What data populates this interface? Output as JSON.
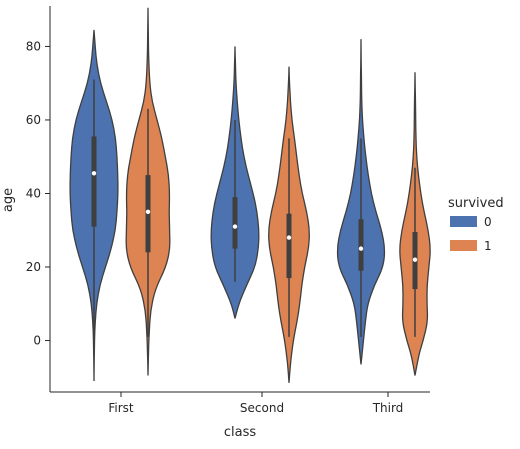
{
  "chart_data": {
    "type": "violin",
    "xlabel": "class",
    "ylabel": "age",
    "categories": [
      "First",
      "Second",
      "Third"
    ],
    "ylim": [
      -14,
      91
    ],
    "yticks": [
      0,
      20,
      40,
      60,
      80
    ],
    "legend": {
      "title": "survived",
      "position": "right",
      "entries": [
        {
          "label": "0",
          "color": "#4c72b0"
        },
        {
          "label": "1",
          "color": "#dd8452"
        }
      ]
    },
    "grid": false,
    "series": [
      {
        "name": "0",
        "color": "#4c72b0",
        "violins": [
          {
            "category": "First",
            "min": -11,
            "max": 84.5,
            "q1": 31,
            "median": 45.5,
            "q3": 55.5,
            "whisker_low": 1,
            "whisker_high": 71,
            "profile": [
              [
                -11,
                0.0
              ],
              [
                -5,
                0.01
              ],
              [
                0,
                0.02
              ],
              [
                5,
                0.05
              ],
              [
                10,
                0.11
              ],
              [
                15,
                0.24
              ],
              [
                20,
                0.48
              ],
              [
                25,
                0.72
              ],
              [
                30,
                0.89
              ],
              [
                35,
                0.96
              ],
              [
                40,
                1.0
              ],
              [
                45,
                0.99
              ],
              [
                50,
                0.96
              ],
              [
                55,
                0.9
              ],
              [
                60,
                0.76
              ],
              [
                65,
                0.52
              ],
              [
                70,
                0.27
              ],
              [
                75,
                0.12
              ],
              [
                80,
                0.05
              ],
              [
                84.5,
                0.0
              ]
            ]
          },
          {
            "category": "Second",
            "min": 6,
            "max": 80,
            "q1": 25,
            "median": 31,
            "q3": 39,
            "whisker_low": 16,
            "whisker_high": 60,
            "profile": [
              [
                6,
                0.0
              ],
              [
                10,
                0.15
              ],
              [
                15,
                0.48
              ],
              [
                20,
                0.84
              ],
              [
                25,
                0.98
              ],
              [
                30,
                1.0
              ],
              [
                35,
                0.92
              ],
              [
                40,
                0.76
              ],
              [
                45,
                0.55
              ],
              [
                50,
                0.37
              ],
              [
                55,
                0.25
              ],
              [
                60,
                0.16
              ],
              [
                65,
                0.09
              ],
              [
                70,
                0.04
              ],
              [
                75,
                0.02
              ],
              [
                80,
                0.0
              ]
            ]
          },
          {
            "category": "Third",
            "min": -6.5,
            "max": 82,
            "q1": 19,
            "median": 25,
            "q3": 33,
            "whisker_low": 1,
            "whisker_high": 55,
            "profile": [
              [
                -6.5,
                0.0
              ],
              [
                0,
                0.1
              ],
              [
                5,
                0.18
              ],
              [
                10,
                0.28
              ],
              [
                15,
                0.55
              ],
              [
                20,
                0.93
              ],
              [
                25,
                1.0
              ],
              [
                30,
                0.86
              ],
              [
                35,
                0.62
              ],
              [
                40,
                0.43
              ],
              [
                45,
                0.3
              ],
              [
                50,
                0.2
              ],
              [
                55,
                0.12
              ],
              [
                60,
                0.06
              ],
              [
                65,
                0.03
              ],
              [
                70,
                0.02
              ],
              [
                75,
                0.01
              ],
              [
                82,
                0.0
              ]
            ]
          }
        ]
      },
      {
        "name": "1",
        "color": "#dd8452",
        "violins": [
          {
            "category": "First",
            "min": -9.5,
            "max": 90.5,
            "q1": 24,
            "median": 35,
            "q3": 45,
            "whisker_low": 1,
            "whisker_high": 63,
            "profile": [
              [
                -9.5,
                0.0
              ],
              [
                -3,
                0.02
              ],
              [
                2,
                0.05
              ],
              [
                8,
                0.1
              ],
              [
                14,
                0.3
              ],
              [
                20,
                0.75
              ],
              [
                25,
                0.92
              ],
              [
                30,
                0.9
              ],
              [
                35,
                0.88
              ],
              [
                40,
                0.9
              ],
              [
                45,
                0.86
              ],
              [
                50,
                0.72
              ],
              [
                55,
                0.58
              ],
              [
                60,
                0.38
              ],
              [
                65,
                0.17
              ],
              [
                70,
                0.07
              ],
              [
                78,
                0.02
              ],
              [
                85,
                0.01
              ],
              [
                90.5,
                0.0
              ]
            ]
          },
          {
            "category": "Second",
            "min": -11.5,
            "max": 74.5,
            "q1": 17,
            "median": 28,
            "q3": 34.5,
            "whisker_low": 1,
            "whisker_high": 55,
            "profile": [
              [
                -11.5,
                0.0
              ],
              [
                -6,
                0.06
              ],
              [
                0,
                0.18
              ],
              [
                5,
                0.33
              ],
              [
                10,
                0.45
              ],
              [
                15,
                0.53
              ],
              [
                20,
                0.65
              ],
              [
                25,
                0.82
              ],
              [
                30,
                0.86
              ],
              [
                35,
                0.74
              ],
              [
                40,
                0.55
              ],
              [
                45,
                0.42
              ],
              [
                50,
                0.32
              ],
              [
                55,
                0.23
              ],
              [
                60,
                0.12
              ],
              [
                65,
                0.06
              ],
              [
                70,
                0.02
              ],
              [
                74.5,
                0.0
              ]
            ]
          },
          {
            "category": "Third",
            "min": -9.5,
            "max": 73,
            "q1": 14,
            "median": 22,
            "q3": 29.5,
            "whisker_low": 1,
            "whisker_high": 47,
            "profile": [
              [
                -9.5,
                0.0
              ],
              [
                -4,
                0.15
              ],
              [
                0,
                0.34
              ],
              [
                5,
                0.53
              ],
              [
                10,
                0.5
              ],
              [
                15,
                0.5
              ],
              [
                20,
                0.58
              ],
              [
                25,
                0.65
              ],
              [
                30,
                0.55
              ],
              [
                35,
                0.38
              ],
              [
                40,
                0.24
              ],
              [
                45,
                0.14
              ],
              [
                50,
                0.07
              ],
              [
                55,
                0.04
              ],
              [
                60,
                0.03
              ],
              [
                65,
                0.02
              ],
              [
                73,
                0.0
              ]
            ]
          }
        ]
      }
    ]
  }
}
